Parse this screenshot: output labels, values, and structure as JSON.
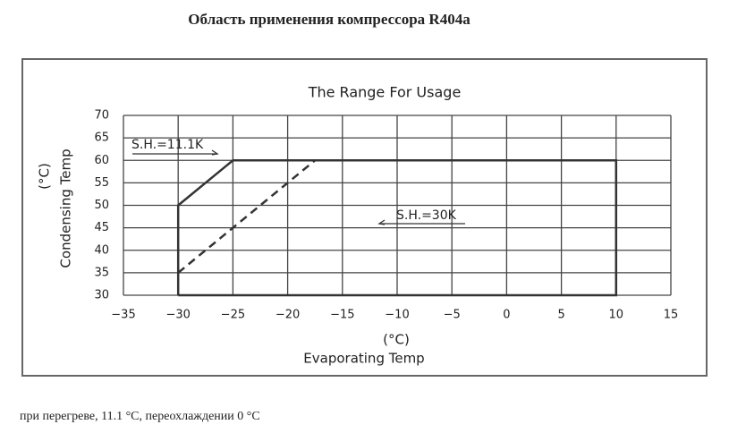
{
  "header": {
    "title": "Область применения компрессора R404a"
  },
  "chart_data": {
    "type": "line",
    "title": "The Range For Usage",
    "xlabel_unit": "(°C)",
    "xlabel": "Evaporating Temp",
    "ylabel_unit": "(°C)",
    "ylabel": "Condensing Temp",
    "xlim": [
      -35,
      15
    ],
    "xticks": [
      {
        "value": -35,
        "label": "−35"
      },
      {
        "value": -30,
        "label": "−30"
      },
      {
        "value": -25,
        "label": "−25"
      },
      {
        "value": -20,
        "label": "−20"
      },
      {
        "value": -15,
        "label": "−15"
      },
      {
        "value": -10,
        "label": "−10"
      },
      {
        "value": -5,
        "label": "−5"
      },
      0,
      5,
      10,
      15
    ],
    "ylim": [
      30,
      70
    ],
    "yticks": [
      30,
      35,
      40,
      45,
      50,
      55,
      60,
      65,
      70
    ],
    "grid": true,
    "series": [
      {
        "name": "S.H.=11.1K",
        "color": "#333333",
        "line_style": "solid",
        "x": [
          -30,
          -30,
          -25,
          10,
          10,
          -30
        ],
        "values": [
          30,
          50,
          60,
          60,
          30,
          30
        ]
      },
      {
        "name": "S.H.=30K",
        "color": "#333333",
        "line_style": "dashed",
        "x": [
          -30,
          -17.5
        ],
        "values": [
          35,
          60
        ]
      }
    ]
  },
  "footer": {
    "caption": "при перегреве, 11.1 °C, переохлаждении 0 °C"
  }
}
